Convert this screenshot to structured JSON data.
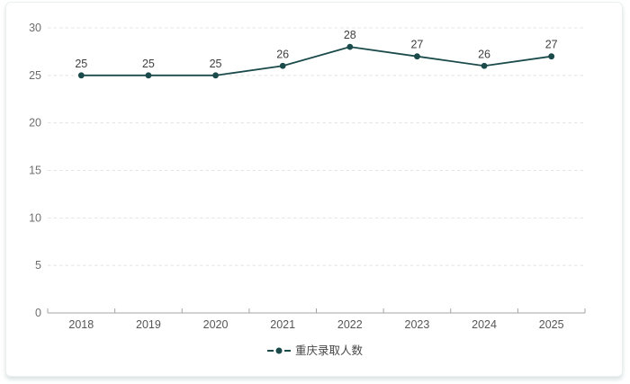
{
  "legend": {
    "label": "重庆录取人数"
  },
  "chart_data": {
    "type": "line",
    "categories": [
      "2018",
      "2019",
      "2020",
      "2021",
      "2022",
      "2023",
      "2024",
      "2025"
    ],
    "series": [
      {
        "name": "重庆录取人数",
        "values": [
          25,
          25,
          25,
          26,
          28,
          27,
          26,
          27
        ]
      }
    ],
    "title": "",
    "xlabel": "",
    "ylabel": "",
    "ylim": [
      0,
      30
    ],
    "y_ticks": [
      0,
      5,
      10,
      15,
      20,
      25,
      30
    ],
    "grid": "horizontal-dashed",
    "legend_position": "bottom-center",
    "data_labels": true,
    "colors": {
      "line": "#1b4a4b",
      "marker": "#1b4a4b",
      "grid": "#e4e4e4",
      "axis": "#a3a3a3",
      "y_tick_label": "#6e6e6e",
      "x_tick_label": "#565656",
      "data_label": "#3f3f3f",
      "card_border": "#eceff0",
      "background": "#ffffff"
    }
  }
}
